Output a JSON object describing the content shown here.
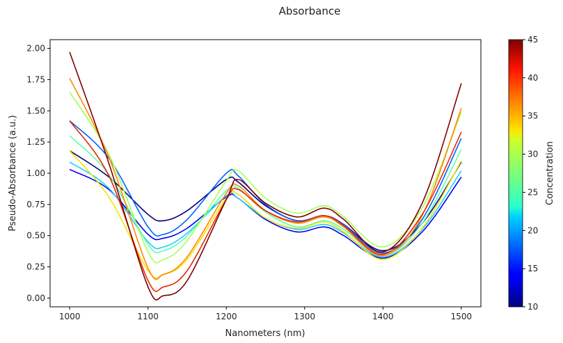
{
  "chart_data": {
    "type": "line",
    "title": "Absorbance",
    "xlabel": "Nanometers (nm)",
    "ylabel": "Pseudo-Absorbance (a.u.)",
    "xlim": [
      975,
      1525
    ],
    "ylim": [
      -0.07,
      2.07
    ],
    "xticks": [
      1000,
      1100,
      1200,
      1300,
      1400,
      1500
    ],
    "xtick_labels": [
      "1000",
      "1100",
      "1200",
      "1300",
      "1400",
      "1500"
    ],
    "yticks": [
      0,
      0.25,
      0.5,
      0.75,
      1.0,
      1.25,
      1.5,
      1.75,
      2.0
    ],
    "ytick_labels": [
      "0.00",
      "0.25",
      "0.50",
      "0.75",
      "1.00",
      "1.25",
      "1.50",
      "1.75",
      "2.00"
    ],
    "grid": false,
    "colorbar": {
      "label": "Concentration",
      "range": [
        10,
        45
      ],
      "ticks": [
        10,
        15,
        20,
        25,
        30,
        35,
        40,
        45
      ],
      "tick_labels": [
        "10",
        "15",
        "20",
        "25",
        "30",
        "35",
        "40",
        "45"
      ],
      "colormap": "jet"
    },
    "x": [
      1000,
      1050,
      1100,
      1120,
      1150,
      1200,
      1215,
      1250,
      1290,
      1325,
      1350,
      1400,
      1450,
      1500
    ],
    "series": [
      {
        "name": "10",
        "color": "#00007f",
        "values": [
          1.18,
          0.97,
          0.67,
          0.62,
          0.7,
          0.95,
          0.93,
          0.74,
          0.62,
          0.66,
          0.59,
          0.38,
          0.6,
          1.09
        ]
      },
      {
        "name": "14",
        "color": "#0000ef",
        "values": [
          1.03,
          0.87,
          0.51,
          0.48,
          0.56,
          0.81,
          0.8,
          0.63,
          0.53,
          0.57,
          0.5,
          0.32,
          0.53,
          0.97
        ]
      },
      {
        "name": "18",
        "color": "#0060ff",
        "values": [
          1.42,
          1.12,
          0.57,
          0.51,
          0.63,
          1.0,
          0.98,
          0.75,
          0.62,
          0.66,
          0.59,
          0.36,
          0.63,
          1.28
        ]
      },
      {
        "name": "22",
        "color": "#1fd0ff",
        "values": [
          1.09,
          0.88,
          0.45,
          0.41,
          0.52,
          0.82,
          0.8,
          0.64,
          0.55,
          0.59,
          0.52,
          0.33,
          0.55,
          1.02
        ]
      },
      {
        "name": "26",
        "color": "#5cffb0",
        "values": [
          1.3,
          0.99,
          0.43,
          0.38,
          0.5,
          0.86,
          0.88,
          0.69,
          0.57,
          0.62,
          0.55,
          0.34,
          0.6,
          1.19
        ]
      },
      {
        "name": "29",
        "color": "#a6ff57",
        "values": [
          1.65,
          1.15,
          0.37,
          0.31,
          0.46,
          0.94,
          1.02,
          0.8,
          0.68,
          0.74,
          0.65,
          0.41,
          0.72,
          1.49
        ]
      },
      {
        "name": "33",
        "color": "#f5e400",
        "values": [
          1.18,
          0.81,
          0.22,
          0.19,
          0.31,
          0.8,
          0.83,
          0.64,
          0.56,
          0.61,
          0.53,
          0.31,
          0.56,
          1.1
        ]
      },
      {
        "name": "37",
        "color": "#ff8a00",
        "values": [
          1.76,
          1.13,
          0.24,
          0.19,
          0.33,
          0.84,
          0.9,
          0.7,
          0.6,
          0.65,
          0.57,
          0.34,
          0.66,
          1.52
        ]
      },
      {
        "name": "42",
        "color": "#e82800",
        "values": [
          1.42,
          0.98,
          0.14,
          0.09,
          0.22,
          0.79,
          0.87,
          0.7,
          0.61,
          0.66,
          0.58,
          0.35,
          0.67,
          1.33
        ]
      },
      {
        "name": "45",
        "color": "#7f0000",
        "values": [
          1.97,
          1.08,
          0.09,
          0.02,
          0.14,
          0.79,
          0.95,
          0.76,
          0.65,
          0.72,
          0.63,
          0.37,
          0.76,
          1.72
        ]
      }
    ]
  }
}
